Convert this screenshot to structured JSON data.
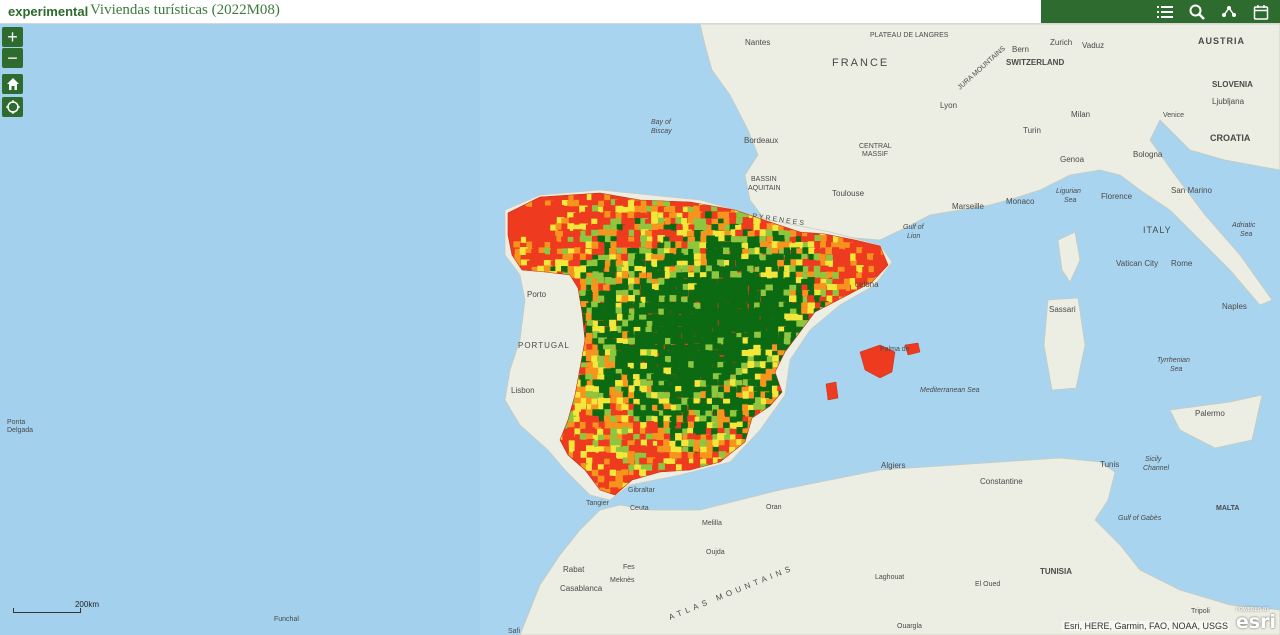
{
  "header": {
    "logo_text": "experimental",
    "title": "Viviendas turísticas (2022M08)"
  },
  "toolbar": {
    "icons": [
      "legend-list-icon",
      "search-icon",
      "basemap-icon",
      "calendar-icon"
    ]
  },
  "controls": {
    "zoom_in": "+",
    "zoom_out": "−"
  },
  "scale": {
    "label": "200km"
  },
  "attribution": "Esri, HERE, Garmin, FAO, NOAA, USGS",
  "esri_logo": "esri",
  "esri_powered": "POWERED BY",
  "colors": {
    "header_green": "#2e6b2e",
    "sea": "#a9d4ef",
    "land": "#eceee3",
    "class_high": "#ee3a1f",
    "class_midhigh": "#f7941e",
    "class_mid": "#f3e83a",
    "class_midlow": "#8ec63f",
    "class_low": "#0b6a12"
  },
  "places": {
    "nantes": "Nantes",
    "plateau": "PLATEAU DE LANGRES",
    "bern": "Bern",
    "zurich": "Zurich",
    "vaduz": "Vaduz",
    "austria": "AUSTRIA",
    "switzerland": "SWITZERLAND",
    "france": "FRANCE",
    "jura": "JURA MOUNTAINS",
    "slovenia": "SLOVENIA",
    "ljubljana": "Ljubljana",
    "bay_of_biscay_1": "Bay of",
    "bay_of_biscay_2": "Biscay",
    "lyon": "Lyon",
    "milan": "Milan",
    "venice": "Venice",
    "croatia": "CROATIA",
    "bordeaux": "Bordeaux",
    "turin": "Turin",
    "central_1": "CENTRAL",
    "central_2": "MASSIF",
    "genoa": "Genoa",
    "bologna": "Bologna",
    "basin_1": "BASSIN",
    "basin_2": "AQUITAIN",
    "toulouse": "Toulouse",
    "marseille": "Marseille",
    "monaco": "Monaco",
    "florence": "Florence",
    "san_marino": "San Marino",
    "ligurian_1": "Ligurian",
    "ligurian_2": "Sea",
    "gulf_lion_1": "Gulf of",
    "gulf_lion_2": "Lion",
    "pyrenees": "PYRENEES",
    "italy": "ITALY",
    "adriatic_1": "Adriatic",
    "adriatic_2": "Sea",
    "vatican": "Vatican City",
    "rome": "Rome",
    "barcelona": "celona",
    "porto": "Porto",
    "sassari": "Sassari",
    "naples": "Naples",
    "portugal": "PORTUGAL",
    "palma": "Palma de",
    "tyrrhenian_1": "Tyrrhenian",
    "tyrrhenian_2": "Sea",
    "lisbon": "Lisbon",
    "mediterranean": "Mediterranean Sea",
    "ponta_1": "Ponta",
    "ponta_2": "Delgada",
    "palermo": "Palermo",
    "algiers": "Algiers",
    "tunis": "Tunis",
    "sicily_1": "Sicily",
    "sicily_2": "Channel",
    "gibraltar": "Gibraltar",
    "constantine": "Constantine",
    "tangier": "Tangier",
    "ceuta": "Ceuta",
    "oran": "Oran",
    "malta": "MALTA",
    "melilla": "Melilla",
    "oujda": "Oujda",
    "rabat": "Rabat",
    "fes": "Fes",
    "meknes": "Meknès",
    "casablanca": "Casablanca",
    "atlas": "ATLAS MOUNTAINS",
    "laghouat": "Laghouat",
    "el_oued": "El Oued",
    "tunisia": "TUNISIA",
    "funchal": "Funchal",
    "safi": "Safi",
    "tripoli": "Tripoli",
    "ouargla": "Ouargla",
    "gulf_gabes": "Gulf of Gabès"
  }
}
